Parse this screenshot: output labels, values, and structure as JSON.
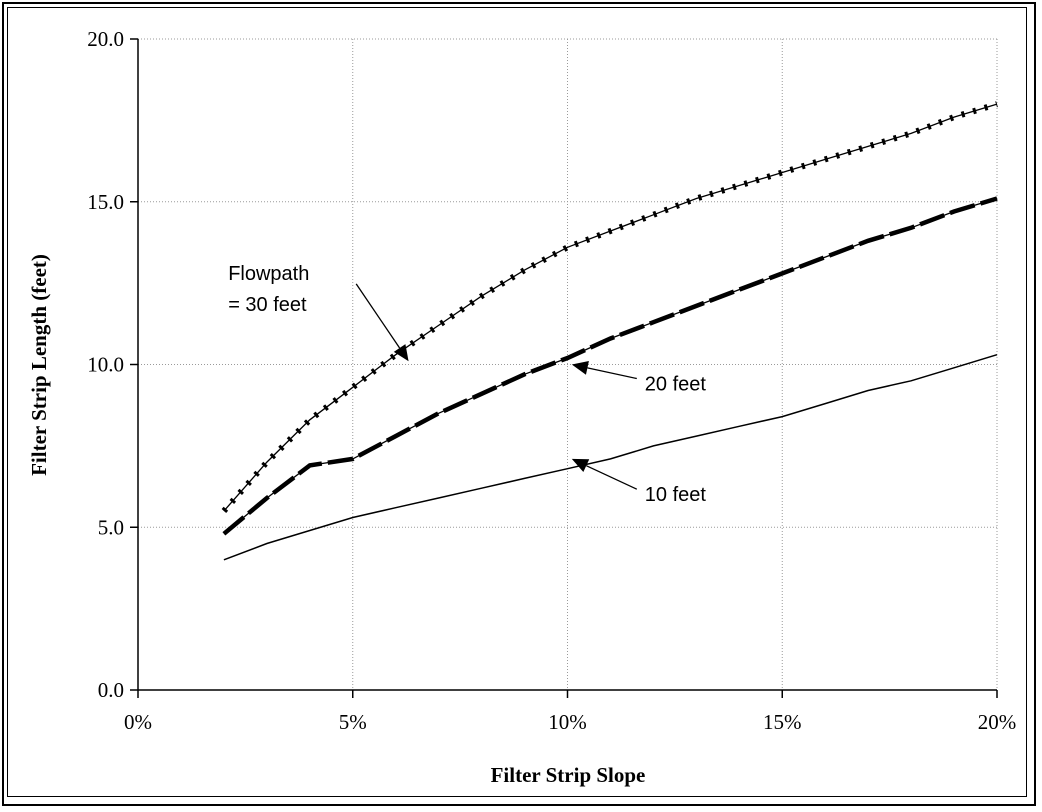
{
  "chart_data": {
    "type": "line",
    "title": "",
    "xlabel": "Filter Strip Slope",
    "ylabel": "Filter Strip Length (feet)",
    "xlim": [
      0,
      20
    ],
    "ylim": [
      0,
      20
    ],
    "xticks": [
      {
        "value": 0,
        "label": "0%"
      },
      {
        "value": 5,
        "label": "5%"
      },
      {
        "value": 10,
        "label": "10%"
      },
      {
        "value": 15,
        "label": "15%"
      },
      {
        "value": 20,
        "label": "20%"
      }
    ],
    "yticks": [
      {
        "value": 0,
        "label": "0.0"
      },
      {
        "value": 5,
        "label": "5.0"
      },
      {
        "value": 10,
        "label": "10.0"
      },
      {
        "value": 15,
        "label": "15.0"
      },
      {
        "value": 20,
        "label": "20.0"
      }
    ],
    "grid": true,
    "x": [
      2,
      3,
      4,
      5,
      6,
      7,
      8,
      9,
      10,
      11,
      12,
      13,
      14,
      15,
      16,
      17,
      18,
      19,
      20
    ],
    "series": [
      {
        "values": [
          5.5,
          7.0,
          8.3,
          9.3,
          10.3,
          11.2,
          12.1,
          12.9,
          13.6,
          14.1,
          14.6,
          15.1,
          15.5,
          15.9,
          16.3,
          16.7,
          17.1,
          17.6,
          18.0
        ],
        "style": "dotted"
      },
      {
        "values": [
          4.8,
          5.9,
          6.9,
          7.1,
          7.8,
          8.5,
          9.1,
          9.7,
          10.2,
          10.8,
          11.3,
          11.8,
          12.3,
          12.8,
          13.3,
          13.8,
          14.2,
          14.7,
          15.1
        ],
        "style": "dashed"
      },
      {
        "values": [
          4.0,
          4.5,
          4.9,
          5.3,
          5.6,
          5.9,
          6.2,
          6.5,
          6.8,
          7.1,
          7.5,
          7.8,
          8.1,
          8.4,
          8.8,
          9.2,
          9.5,
          9.9,
          10.3
        ],
        "style": "solid"
      }
    ],
    "annotations": [
      {
        "id": "flowpath-30",
        "lines": [
          "Flowpath",
          "=  30 feet"
        ],
        "x": 2.1,
        "y": 12.6,
        "arrow_to": [
          6.3,
          10.1
        ]
      },
      {
        "id": "flowpath-20",
        "lines": [
          "20 feet"
        ],
        "x": 11.8,
        "y": 9.2,
        "arrow_to": [
          10.1,
          10.0
        ]
      },
      {
        "id": "flowpath-10",
        "lines": [
          "10 feet"
        ],
        "x": 11.8,
        "y": 5.8,
        "arrow_to": [
          10.1,
          7.1
        ]
      }
    ],
    "colors": {
      "line": "#000000",
      "grid": "#9a9a9a"
    }
  }
}
